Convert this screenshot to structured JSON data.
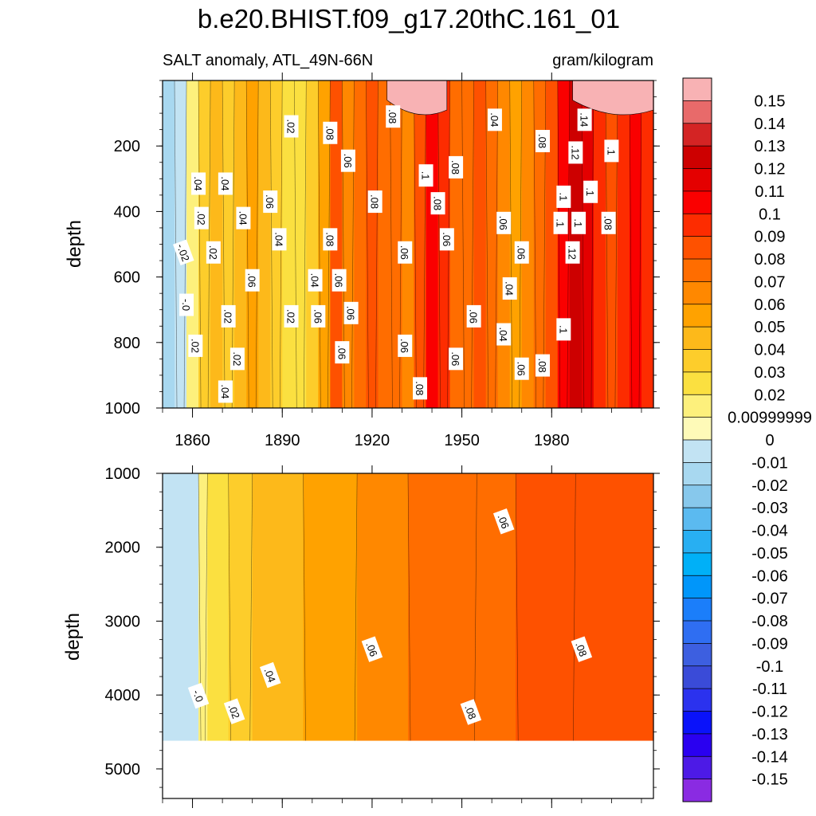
{
  "chart_data": {
    "type": "heatmap",
    "title": "b.e20.BHIST.f09_g17.20thC.161_01",
    "variable_label": "SALT anomaly, ATL_49N-66N",
    "units": "gram/kilogram",
    "colorbar": {
      "labels": [
        "0.15",
        "0.14",
        "0.13",
        "0.12",
        "0.11",
        "0.1",
        "0.09",
        "0.08",
        "0.07",
        "0.06",
        "0.05",
        "0.04",
        "0.03",
        "0.02",
        "0.00999999",
        "0",
        "-0.01",
        "-0.02",
        "-0.03",
        "-0.04",
        "-0.05",
        "-0.06",
        "-0.07",
        "-0.08",
        "-0.09",
        "-0.1",
        "-0.11",
        "-0.12",
        "-0.13",
        "-0.14",
        "-0.15"
      ],
      "colors": [
        "#f8b2b4",
        "#e86a6a",
        "#d42424",
        "#cd0000",
        "#e40000",
        "#fa0000",
        "#fd2c00",
        "#fe5100",
        "#ff6d00",
        "#ff8800",
        "#ffa200",
        "#fdb91a",
        "#fdcd2b",
        "#fbe040",
        "#fdf07c",
        "#fefab8",
        "#c2e3f3",
        "#a8d8f0",
        "#87c8ec",
        "#5bbaf0",
        "#28aff2",
        "#00b0f7",
        "#0096fa",
        "#1b7efa",
        "#2f6ef2",
        "#3d5fe0",
        "#3a4bd8",
        "#2b32ee",
        "#0a12fa",
        "#2a00f0",
        "#4d1ae6",
        "#8a2be2"
      ]
    },
    "panels": [
      {
        "name": "upper",
        "ylabel": "depth",
        "y_range": [
          0,
          1000
        ],
        "y_ticks": [
          200,
          400,
          600,
          800,
          1000
        ],
        "x_range": [
          1850,
          2014
        ],
        "x_ticks": [
          1860,
          1890,
          1920,
          1950,
          1980
        ],
        "x_tick_labels": [
          "1860",
          "1890",
          "1920",
          "1950",
          "1980"
        ],
        "bands": [
          {
            "start": 1850,
            "level": -0.02
          },
          {
            "start": 1854,
            "level": -0.01
          },
          {
            "start": 1858,
            "level": 0.01
          },
          {
            "start": 1862,
            "level": 0.03
          },
          {
            "start": 1866,
            "level": 0.04
          },
          {
            "start": 1870,
            "level": 0.03
          },
          {
            "start": 1874,
            "level": 0.04
          },
          {
            "start": 1878,
            "level": 0.05
          },
          {
            "start": 1882,
            "level": 0.04
          },
          {
            "start": 1886,
            "level": 0.03
          },
          {
            "start": 1890,
            "level": 0.02
          },
          {
            "start": 1894,
            "level": 0.02
          },
          {
            "start": 1898,
            "level": 0.03
          },
          {
            "start": 1902,
            "level": 0.05
          },
          {
            "start": 1906,
            "level": 0.08
          },
          {
            "start": 1910,
            "level": 0.06
          },
          {
            "start": 1914,
            "level": 0.07
          },
          {
            "start": 1918,
            "level": 0.08
          },
          {
            "start": 1922,
            "level": 0.07
          },
          {
            "start": 1926,
            "level": 0.07
          },
          {
            "start": 1930,
            "level": 0.06
          },
          {
            "start": 1934,
            "level": 0.08
          },
          {
            "start": 1938,
            "level": 0.1
          },
          {
            "start": 1942,
            "level": 0.09
          },
          {
            "start": 1946,
            "level": 0.07
          },
          {
            "start": 1950,
            "level": 0.07
          },
          {
            "start": 1954,
            "level": 0.08
          },
          {
            "start": 1958,
            "level": 0.07
          },
          {
            "start": 1962,
            "level": 0.06
          },
          {
            "start": 1966,
            "level": 0.05
          },
          {
            "start": 1970,
            "level": 0.06
          },
          {
            "start": 1974,
            "level": 0.07
          },
          {
            "start": 1978,
            "level": 0.08
          },
          {
            "start": 1982,
            "level": 0.1
          },
          {
            "start": 1986,
            "level": 0.12
          },
          {
            "start": 1990,
            "level": 0.11
          },
          {
            "start": 1994,
            "level": 0.09
          },
          {
            "start": 1998,
            "level": 0.08
          },
          {
            "start": 2002,
            "level": 0.09
          },
          {
            "start": 2006,
            "level": 0.1
          },
          {
            "start": 2010,
            "level": 0.09
          }
        ],
        "surface_blobs": [
          {
            "from": 1925,
            "to": 1945,
            "level": 0.15
          },
          {
            "from": 1987,
            "to": 2014,
            "level": 0.15
          }
        ],
        "contour_labels": [
          {
            "x": 1893,
            "y": 140,
            "t": ".02"
          },
          {
            "x": 1906,
            "y": 160,
            "t": ".08"
          },
          {
            "x": 1961,
            "y": 120,
            "t": ".04"
          },
          {
            "x": 1927,
            "y": 110,
            "t": ".08"
          },
          {
            "x": 1912,
            "y": 245,
            "t": ".06"
          },
          {
            "x": 1938,
            "y": 290,
            "t": ".1"
          },
          {
            "x": 1948,
            "y": 265,
            "t": ".08"
          },
          {
            "x": 1977,
            "y": 185,
            "t": ".08"
          },
          {
            "x": 1991,
            "y": 120,
            "t": ".14"
          },
          {
            "x": 1988,
            "y": 220,
            "t": ".12"
          },
          {
            "x": 2000,
            "y": 215,
            "t": ".1"
          },
          {
            "x": 1862,
            "y": 315,
            "t": ".04"
          },
          {
            "x": 1871,
            "y": 315,
            "t": ".04"
          },
          {
            "x": 1863,
            "y": 420,
            "t": ".02"
          },
          {
            "x": 1877,
            "y": 420,
            "t": ".04"
          },
          {
            "x": 1886,
            "y": 370,
            "t": ".06"
          },
          {
            "x": 1921,
            "y": 370,
            "t": ".08"
          },
          {
            "x": 1942,
            "y": 375,
            "t": ".08"
          },
          {
            "x": 1964,
            "y": 435,
            "t": ".06"
          },
          {
            "x": 1984,
            "y": 355,
            "t": ".1"
          },
          {
            "x": 1993,
            "y": 340,
            "t": ".1"
          },
          {
            "x": 1983,
            "y": 435,
            "t": ".1"
          },
          {
            "x": 1989,
            "y": 435,
            "t": ".1"
          },
          {
            "x": 1999,
            "y": 435,
            "t": ".08"
          },
          {
            "x": 1857,
            "y": 525,
            "t": "-.02"
          },
          {
            "x": 1867,
            "y": 525,
            "t": ".02"
          },
          {
            "x": 1889,
            "y": 485,
            "t": ".04"
          },
          {
            "x": 1906,
            "y": 485,
            "t": ".08"
          },
          {
            "x": 1931,
            "y": 525,
            "t": ".06"
          },
          {
            "x": 1945,
            "y": 485,
            "t": ".06"
          },
          {
            "x": 1970,
            "y": 525,
            "t": ".06"
          },
          {
            "x": 1987,
            "y": 525,
            "t": ".12"
          },
          {
            "x": 1880,
            "y": 610,
            "t": ".06"
          },
          {
            "x": 1901,
            "y": 610,
            "t": ".04"
          },
          {
            "x": 1909,
            "y": 610,
            "t": ".06"
          },
          {
            "x": 1966,
            "y": 635,
            "t": ".04"
          },
          {
            "x": 1858,
            "y": 685,
            "t": "-.0"
          },
          {
            "x": 1872,
            "y": 720,
            "t": ".02"
          },
          {
            "x": 1893,
            "y": 720,
            "t": ".02"
          },
          {
            "x": 1902,
            "y": 720,
            "t": ".06"
          },
          {
            "x": 1913,
            "y": 710,
            "t": ".06"
          },
          {
            "x": 1954,
            "y": 720,
            "t": ".06"
          },
          {
            "x": 1964,
            "y": 775,
            "t": ".04"
          },
          {
            "x": 1984,
            "y": 760,
            "t": ".1"
          },
          {
            "x": 1861,
            "y": 810,
            "t": ".02"
          },
          {
            "x": 1875,
            "y": 850,
            "t": ".02"
          },
          {
            "x": 1910,
            "y": 830,
            "t": ".06"
          },
          {
            "x": 1931,
            "y": 810,
            "t": ".06"
          },
          {
            "x": 1948,
            "y": 850,
            "t": ".06"
          },
          {
            "x": 1970,
            "y": 880,
            "t": ".06"
          },
          {
            "x": 1977,
            "y": 870,
            "t": ".08"
          },
          {
            "x": 1936,
            "y": 940,
            "t": ".08"
          },
          {
            "x": 1871,
            "y": 950,
            "t": ".04"
          }
        ]
      },
      {
        "name": "lower",
        "ylabel": "depth",
        "y_range": [
          1000,
          5400
        ],
        "y_ticks": [
          1000,
          2000,
          3000,
          4000,
          5000
        ],
        "max_depth": 4620,
        "x_range": [
          1850,
          2014
        ],
        "x_ticks": [
          1860,
          1890,
          1920,
          1950,
          1980
        ],
        "bands": [
          {
            "start": 1850,
            "level": -0.01
          },
          {
            "start": 1862,
            "level": 0.01
          },
          {
            "start": 1865,
            "level": 0.02
          },
          {
            "start": 1872,
            "level": 0.03
          },
          {
            "start": 1880,
            "level": 0.04
          },
          {
            "start": 1897,
            "level": 0.05
          },
          {
            "start": 1915,
            "level": 0.06
          },
          {
            "start": 1932,
            "level": 0.07
          },
          {
            "start": 1955,
            "level": 0.07
          },
          {
            "start": 1968,
            "level": 0.08
          },
          {
            "start": 1988,
            "level": 0.08
          }
        ],
        "contour_labels": [
          {
            "x": 1964,
            "y": 1650,
            "t": ".06"
          },
          {
            "x": 1920,
            "y": 3380,
            "t": ".06"
          },
          {
            "x": 1990,
            "y": 3380,
            "t": ".08"
          },
          {
            "x": 1886,
            "y": 3730,
            "t": ".04"
          },
          {
            "x": 1862,
            "y": 4010,
            "t": "-.0"
          },
          {
            "x": 1874,
            "y": 4220,
            "t": ".02"
          },
          {
            "x": 1953,
            "y": 4230,
            "t": ".08"
          }
        ]
      }
    ]
  }
}
